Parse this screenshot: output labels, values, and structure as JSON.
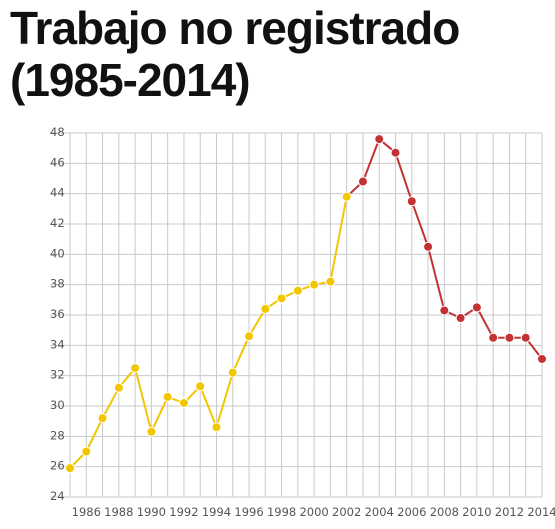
{
  "title_line1": "Trabajo no registrado",
  "title_line2": "(1985-2014)",
  "chart_data": {
    "type": "line",
    "title": "Trabajo no registrado (1985-2014)",
    "xlabel": "",
    "ylabel": "",
    "ylim": [
      24,
      48
    ],
    "xlim": [
      1985,
      2014
    ],
    "y_ticks": [
      "24",
      "26",
      "28",
      "30",
      "32",
      "34",
      "36",
      "38",
      "40",
      "42",
      "44",
      "46",
      "48"
    ],
    "x_ticks": [
      "1986",
      "1988",
      "1990",
      "1992",
      "1994",
      "1996",
      "1998",
      "2000",
      "2002",
      "2004",
      "2006",
      "2008",
      "2010",
      "2012",
      "2014"
    ],
    "grid": true,
    "colors": {
      "early": "#f2c600",
      "late": "#c33232",
      "grid": "#c9c9c9"
    },
    "series": [
      {
        "color": "#f2c600",
        "points": [
          {
            "x": 1985,
            "y": 25.9
          },
          {
            "x": 1986,
            "y": 27.0
          },
          {
            "x": 1987,
            "y": 29.2
          },
          {
            "x": 1988,
            "y": 31.2
          },
          {
            "x": 1989,
            "y": 32.5
          },
          {
            "x": 1990,
            "y": 28.3
          },
          {
            "x": 1991,
            "y": 30.6
          },
          {
            "x": 1992,
            "y": 30.2
          },
          {
            "x": 1993,
            "y": 31.3
          },
          {
            "x": 1994,
            "y": 28.6
          },
          {
            "x": 1995,
            "y": 32.2
          },
          {
            "x": 1996,
            "y": 34.6
          },
          {
            "x": 1997,
            "y": 36.4
          },
          {
            "x": 1998,
            "y": 37.1
          },
          {
            "x": 1999,
            "y": 37.6
          },
          {
            "x": 2000,
            "y": 38.0
          },
          {
            "x": 2001,
            "y": 38.2
          },
          {
            "x": 2002,
            "y": 43.8
          }
        ]
      },
      {
        "color": "#c33232",
        "points": [
          {
            "x": 2003,
            "y": 44.8
          },
          {
            "x": 2004,
            "y": 47.6
          },
          {
            "x": 2005,
            "y": 46.7
          },
          {
            "x": 2006,
            "y": 43.5
          },
          {
            "x": 2007,
            "y": 40.5
          },
          {
            "x": 2008,
            "y": 36.3
          },
          {
            "x": 2009,
            "y": 35.8
          },
          {
            "x": 2010,
            "y": 36.5
          },
          {
            "x": 2011,
            "y": 34.5
          },
          {
            "x": 2012,
            "y": 34.5
          },
          {
            "x": 2013,
            "y": 34.5
          },
          {
            "x": 2014,
            "y": 33.1
          }
        ]
      }
    ]
  }
}
